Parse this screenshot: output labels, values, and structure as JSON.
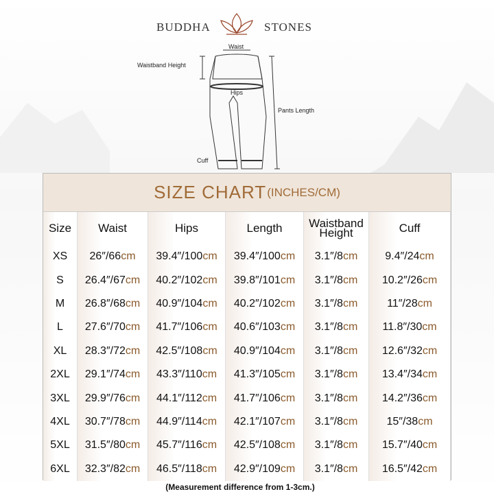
{
  "brand": {
    "left": "BUDDHA",
    "right": "STONES"
  },
  "diagram": {
    "waist": "Waist",
    "waistband_height": "Waistband Height",
    "hips": "Hips",
    "pants_length": "Pants Length",
    "cuff": "Cuff"
  },
  "table": {
    "title": "SIZE CHART",
    "title_unit": "(INCHES/CM)",
    "headers": [
      "Size",
      "Waist",
      "Hips",
      "Length",
      "Waistband Height",
      "Cuff"
    ],
    "rows": [
      [
        "XS",
        "26″/66cm",
        "39.4″/100cm",
        "39.4″/100cm",
        "3.1″/8cm",
        "9.4″/24cm"
      ],
      [
        "S",
        "26.4″/67cm",
        "40.2″/102cm",
        "39.8″/101cm",
        "3.1″/8cm",
        "10.2″/26cm"
      ],
      [
        "M",
        "26.8″/68cm",
        "40.9″/104cm",
        "40.2″/102cm",
        "3.1″/8cm",
        "11″/28cm"
      ],
      [
        "L",
        "27.6″/70cm",
        "41.7″/106cm",
        "40.6″/103cm",
        "3.1″/8cm",
        "11.8″/30cm"
      ],
      [
        "XL",
        "28.3″/72cm",
        "42.5″/108cm",
        "40.9″/104cm",
        "3.1″/8cm",
        "12.6″/32cm"
      ],
      [
        "2XL",
        "29.1″/74cm",
        "43.3″/110cm",
        "41.3″/105cm",
        "3.1″/8cm",
        "13.4″/34cm"
      ],
      [
        "3XL",
        "29.9″/76cm",
        "44.1″/112cm",
        "41.7″/106cm",
        "3.1″/8cm",
        "14.2″/36cm"
      ],
      [
        "4XL",
        "30.7″/78cm",
        "44.9″/114cm",
        "42.1″/107cm",
        "3.1″/8cm",
        "15″/38cm"
      ],
      [
        "5XL",
        "31.5″/80cm",
        "45.7″/116cm",
        "42.5″/108cm",
        "3.1″/8cm",
        "15.7″/40cm"
      ],
      [
        "6XL",
        "32.3″/82cm",
        "46.5″/118cm",
        "42.9″/109cm",
        "3.1″/8cm",
        "16.5″/42cm"
      ]
    ]
  },
  "footnote": "(Measurement difference from 1-3cm.)"
}
